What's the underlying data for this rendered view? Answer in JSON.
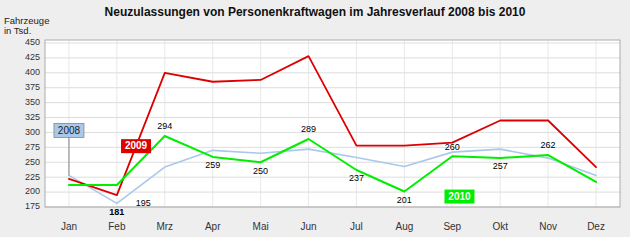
{
  "chart_data": {
    "type": "line",
    "title": "Neuzulassungen von Personenkraftwagen im Jahresverlauf 2008 bis 2010",
    "y_label": "Fahrzeuge\nin Tsd.",
    "categories": [
      "Jan",
      "Feb",
      "Mrz",
      "Apr",
      "Mai",
      "Jun",
      "Jul",
      "Aug",
      "Sep",
      "Okt",
      "Nov",
      "Dez"
    ],
    "series": [
      {
        "name": "2008",
        "color": "#aac8ea",
        "values": [
          228,
          181,
          242,
          270,
          265,
          272,
          258,
          243,
          267,
          272,
          257,
          228
        ],
        "value_labels": [
          null,
          "181",
          null,
          null,
          null,
          null,
          null,
          null,
          null,
          null,
          null,
          null
        ]
      },
      {
        "name": "2009",
        "color": "#dd0000",
        "values": [
          222,
          195,
          400,
          385,
          388,
          428,
          278,
          278,
          283,
          320,
          320,
          242
        ],
        "value_labels": [
          null,
          "195",
          null,
          null,
          null,
          null,
          null,
          null,
          null,
          null,
          null,
          null
        ]
      },
      {
        "name": "2010",
        "color": "#00ee00",
        "values": [
          212,
          212,
          294,
          259,
          250,
          289,
          237,
          201,
          260,
          257,
          262,
          217
        ],
        "value_labels": [
          null,
          null,
          "294",
          "259",
          "250",
          "289",
          "237",
          "201",
          "260",
          "257",
          "262",
          null
        ]
      }
    ],
    "ylim": [
      175,
      455
    ],
    "yticks": [
      175,
      200,
      225,
      250,
      275,
      300,
      325,
      350,
      375,
      400,
      425,
      450
    ],
    "grid": true
  }
}
